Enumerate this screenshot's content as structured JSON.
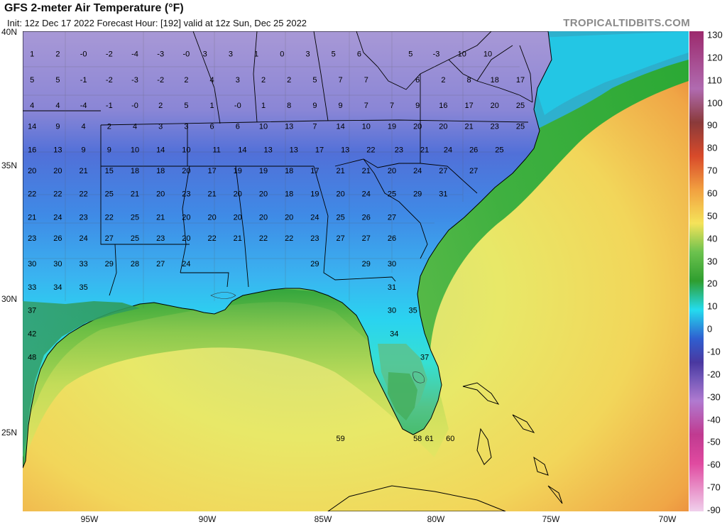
{
  "header": {
    "title": "GFS 2-meter Air Temperature (°F)",
    "subtitle": "Init: 12z Dec 17 2022   Forecast Hour: [192]   valid at 12z Sun, Dec 25 2022",
    "site": "TROPICALTIDBITS.COM"
  },
  "lat_labels": [
    "40N",
    "35N",
    "30N",
    "25N"
  ],
  "lon_labels": [
    "95W",
    "90W",
    "85W",
    "80W",
    "75W",
    "70W"
  ],
  "colorbar": {
    "ticks": [
      "130",
      "120",
      "110",
      "100",
      "90",
      "80",
      "70",
      "60",
      "50",
      "40",
      "30",
      "20",
      "10",
      "0",
      "-10",
      "-20",
      "-30",
      "-40",
      "-50",
      "-60",
      "-70",
      "-90"
    ],
    "colors": {
      "hot": "#9c2a6d",
      "warm": "#e8572a",
      "mild": "#f5e35a",
      "green": "#2f9e2f",
      "cyan": "#24dcef",
      "blue": "#2f5fd0",
      "cold": "#6e55b6",
      "frigid": "#d8c4ec"
    }
  },
  "values": [
    {
      "t": "1",
      "lon": -97.6,
      "lat": 39.0
    },
    {
      "t": "2",
      "lon": -96.5,
      "lat": 39.0
    },
    {
      "t": "-0",
      "lon": -95.4,
      "lat": 39.0
    },
    {
      "t": "-2",
      "lon": -94.3,
      "lat": 39.0
    },
    {
      "t": "-4",
      "lon": -93.2,
      "lat": 39.0
    },
    {
      "t": "-3",
      "lon": -92.1,
      "lat": 39.0
    },
    {
      "t": "-0",
      "lon": -91.0,
      "lat": 39.0
    },
    {
      "t": "3",
      "lon": -90.2,
      "lat": 39.0
    },
    {
      "t": "3",
      "lon": -89.1,
      "lat": 39.0
    },
    {
      "t": "1",
      "lon": -88.0,
      "lat": 39.0
    },
    {
      "t": "0",
      "lon": -86.9,
      "lat": 39.0
    },
    {
      "t": "3",
      "lon": -85.8,
      "lat": 39.0
    },
    {
      "t": "5",
      "lon": -84.7,
      "lat": 39.0
    },
    {
      "t": "6",
      "lon": -83.6,
      "lat": 39.0
    },
    {
      "t": "5",
      "lon": -81.4,
      "lat": 39.0
    },
    {
      "t": "-3",
      "lon": -80.3,
      "lat": 39.0
    },
    {
      "t": "10",
      "lon": -79.2,
      "lat": 39.0
    },
    {
      "t": "10",
      "lon": -78.1,
      "lat": 39.0
    },
    {
      "t": "5",
      "lon": -97.6,
      "lat": 37.9
    },
    {
      "t": "5",
      "lon": -96.5,
      "lat": 37.9
    },
    {
      "t": "-1",
      "lon": -95.4,
      "lat": 37.9
    },
    {
      "t": "-2",
      "lon": -94.3,
      "lat": 37.9
    },
    {
      "t": "-3",
      "lon": -93.2,
      "lat": 37.9
    },
    {
      "t": "-2",
      "lon": -92.1,
      "lat": 37.9
    },
    {
      "t": "2",
      "lon": -91.0,
      "lat": 37.9
    },
    {
      "t": "4",
      "lon": -89.9,
      "lat": 37.9
    },
    {
      "t": "3",
      "lon": -88.8,
      "lat": 37.9
    },
    {
      "t": "2",
      "lon": -87.7,
      "lat": 37.9
    },
    {
      "t": "2",
      "lon": -86.6,
      "lat": 37.9
    },
    {
      "t": "5",
      "lon": -85.5,
      "lat": 37.9
    },
    {
      "t": "7",
      "lon": -84.4,
      "lat": 37.9
    },
    {
      "t": "7",
      "lon": -83.3,
      "lat": 37.9
    },
    {
      "t": "6",
      "lon": -81.1,
      "lat": 37.9
    },
    {
      "t": "2",
      "lon": -80.0,
      "lat": 37.9
    },
    {
      "t": "8",
      "lon": -78.9,
      "lat": 37.9
    },
    {
      "t": "18",
      "lon": -77.8,
      "lat": 37.9
    },
    {
      "t": "17",
      "lon": -76.7,
      "lat": 37.9
    },
    {
      "t": "4",
      "lon": -97.6,
      "lat": 36.8
    },
    {
      "t": "4",
      "lon": -96.5,
      "lat": 36.8
    },
    {
      "t": "-4",
      "lon": -95.4,
      "lat": 36.8
    },
    {
      "t": "-1",
      "lon": -94.3,
      "lat": 36.8
    },
    {
      "t": "-0",
      "lon": -93.2,
      "lat": 36.8
    },
    {
      "t": "2",
      "lon": -92.1,
      "lat": 36.8
    },
    {
      "t": "5",
      "lon": -91.0,
      "lat": 36.8
    },
    {
      "t": "1",
      "lon": -89.9,
      "lat": 36.8
    },
    {
      "t": "-0",
      "lon": -88.8,
      "lat": 36.8
    },
    {
      "t": "1",
      "lon": -87.7,
      "lat": 36.8
    },
    {
      "t": "8",
      "lon": -86.6,
      "lat": 36.8
    },
    {
      "t": "9",
      "lon": -85.5,
      "lat": 36.8
    },
    {
      "t": "9",
      "lon": -84.4,
      "lat": 36.8
    },
    {
      "t": "7",
      "lon": -83.3,
      "lat": 36.8
    },
    {
      "t": "7",
      "lon": -82.2,
      "lat": 36.8
    },
    {
      "t": "9",
      "lon": -81.1,
      "lat": 36.8
    },
    {
      "t": "16",
      "lon": -80.0,
      "lat": 36.8
    },
    {
      "t": "17",
      "lon": -78.9,
      "lat": 36.8
    },
    {
      "t": "20",
      "lon": -77.8,
      "lat": 36.8
    },
    {
      "t": "25",
      "lon": -76.7,
      "lat": 36.8
    },
    {
      "t": "14",
      "lon": -97.6,
      "lat": 35.9
    },
    {
      "t": "9",
      "lon": -96.5,
      "lat": 35.9
    },
    {
      "t": "4",
      "lon": -95.4,
      "lat": 35.9
    },
    {
      "t": "2",
      "lon": -94.3,
      "lat": 35.9
    },
    {
      "t": "4",
      "lon": -93.2,
      "lat": 35.9
    },
    {
      "t": "3",
      "lon": -92.1,
      "lat": 35.9
    },
    {
      "t": "3",
      "lon": -91.0,
      "lat": 35.9
    },
    {
      "t": "6",
      "lon": -89.9,
      "lat": 35.9
    },
    {
      "t": "6",
      "lon": -88.8,
      "lat": 35.9
    },
    {
      "t": "10",
      "lon": -87.7,
      "lat": 35.9
    },
    {
      "t": "13",
      "lon": -86.6,
      "lat": 35.9
    },
    {
      "t": "7",
      "lon": -85.5,
      "lat": 35.9
    },
    {
      "t": "14",
      "lon": -84.4,
      "lat": 35.9
    },
    {
      "t": "10",
      "lon": -83.3,
      "lat": 35.9
    },
    {
      "t": "19",
      "lon": -82.2,
      "lat": 35.9
    },
    {
      "t": "20",
      "lon": -81.1,
      "lat": 35.9
    },
    {
      "t": "20",
      "lon": -80.0,
      "lat": 35.9
    },
    {
      "t": "21",
      "lon": -78.9,
      "lat": 35.9
    },
    {
      "t": "23",
      "lon": -77.8,
      "lat": 35.9
    },
    {
      "t": "25",
      "lon": -76.7,
      "lat": 35.9
    },
    {
      "t": "16",
      "lon": -97.6,
      "lat": 34.9
    },
    {
      "t": "13",
      "lon": -96.5,
      "lat": 34.9
    },
    {
      "t": "9",
      "lon": -95.4,
      "lat": 34.9
    },
    {
      "t": "9",
      "lon": -94.3,
      "lat": 34.9
    },
    {
      "t": "10",
      "lon": -93.2,
      "lat": 34.9
    },
    {
      "t": "14",
      "lon": -92.1,
      "lat": 34.9
    },
    {
      "t": "10",
      "lon": -91.0,
      "lat": 34.9
    },
    {
      "t": "11",
      "lon": -89.7,
      "lat": 34.9
    },
    {
      "t": "14",
      "lon": -88.6,
      "lat": 34.9
    },
    {
      "t": "13",
      "lon": -87.5,
      "lat": 34.9
    },
    {
      "t": "13",
      "lon": -86.4,
      "lat": 34.9
    },
    {
      "t": "17",
      "lon": -85.3,
      "lat": 34.9
    },
    {
      "t": "13",
      "lon": -84.2,
      "lat": 34.9
    },
    {
      "t": "22",
      "lon": -83.1,
      "lat": 34.9
    },
    {
      "t": "23",
      "lon": -81.9,
      "lat": 34.9
    },
    {
      "t": "21",
      "lon": -80.8,
      "lat": 34.9
    },
    {
      "t": "24",
      "lon": -79.8,
      "lat": 34.9
    },
    {
      "t": "26",
      "lon": -78.7,
      "lat": 34.9
    },
    {
      "t": "25",
      "lon": -77.6,
      "lat": 34.9
    },
    {
      "t": "20",
      "lon": -97.6,
      "lat": 34.0
    },
    {
      "t": "20",
      "lon": -96.5,
      "lat": 34.0
    },
    {
      "t": "21",
      "lon": -95.4,
      "lat": 34.0
    },
    {
      "t": "15",
      "lon": -94.3,
      "lat": 34.0
    },
    {
      "t": "18",
      "lon": -93.2,
      "lat": 34.0
    },
    {
      "t": "18",
      "lon": -92.1,
      "lat": 34.0
    },
    {
      "t": "20",
      "lon": -91.0,
      "lat": 34.0
    },
    {
      "t": "17",
      "lon": -89.9,
      "lat": 34.0
    },
    {
      "t": "19",
      "lon": -88.8,
      "lat": 34.0
    },
    {
      "t": "19",
      "lon": -87.7,
      "lat": 34.0
    },
    {
      "t": "18",
      "lon": -86.6,
      "lat": 34.0
    },
    {
      "t": "17",
      "lon": -85.5,
      "lat": 34.0
    },
    {
      "t": "21",
      "lon": -84.4,
      "lat": 34.0
    },
    {
      "t": "21",
      "lon": -83.3,
      "lat": 34.0
    },
    {
      "t": "20",
      "lon": -82.2,
      "lat": 34.0
    },
    {
      "t": "24",
      "lon": -81.1,
      "lat": 34.0
    },
    {
      "t": "27",
      "lon": -80.0,
      "lat": 34.0
    },
    {
      "t": "27",
      "lon": -78.7,
      "lat": 34.0
    },
    {
      "t": "22",
      "lon": -97.6,
      "lat": 33.0
    },
    {
      "t": "22",
      "lon": -96.5,
      "lat": 33.0
    },
    {
      "t": "22",
      "lon": -95.4,
      "lat": 33.0
    },
    {
      "t": "25",
      "lon": -94.3,
      "lat": 33.0
    },
    {
      "t": "21",
      "lon": -93.2,
      "lat": 33.0
    },
    {
      "t": "20",
      "lon": -92.1,
      "lat": 33.0
    },
    {
      "t": "23",
      "lon": -91.0,
      "lat": 33.0
    },
    {
      "t": "21",
      "lon": -89.9,
      "lat": 33.0
    },
    {
      "t": "20",
      "lon": -88.8,
      "lat": 33.0
    },
    {
      "t": "20",
      "lon": -87.7,
      "lat": 33.0
    },
    {
      "t": "18",
      "lon": -86.6,
      "lat": 33.0
    },
    {
      "t": "19",
      "lon": -85.5,
      "lat": 33.0
    },
    {
      "t": "20",
      "lon": -84.4,
      "lat": 33.0
    },
    {
      "t": "24",
      "lon": -83.3,
      "lat": 33.0
    },
    {
      "t": "25",
      "lon": -82.2,
      "lat": 33.0
    },
    {
      "t": "29",
      "lon": -81.1,
      "lat": 33.0
    },
    {
      "t": "31",
      "lon": -80.0,
      "lat": 33.0
    },
    {
      "t": "21",
      "lon": -97.6,
      "lat": 32.0
    },
    {
      "t": "24",
      "lon": -96.5,
      "lat": 32.0
    },
    {
      "t": "23",
      "lon": -95.4,
      "lat": 32.0
    },
    {
      "t": "22",
      "lon": -94.3,
      "lat": 32.0
    },
    {
      "t": "25",
      "lon": -93.2,
      "lat": 32.0
    },
    {
      "t": "21",
      "lon": -92.1,
      "lat": 32.0
    },
    {
      "t": "20",
      "lon": -91.0,
      "lat": 32.0
    },
    {
      "t": "20",
      "lon": -89.9,
      "lat": 32.0
    },
    {
      "t": "20",
      "lon": -88.8,
      "lat": 32.0
    },
    {
      "t": "20",
      "lon": -87.7,
      "lat": 32.0
    },
    {
      "t": "20",
      "lon": -86.6,
      "lat": 32.0
    },
    {
      "t": "24",
      "lon": -85.5,
      "lat": 32.0
    },
    {
      "t": "25",
      "lon": -84.4,
      "lat": 32.0
    },
    {
      "t": "26",
      "lon": -83.3,
      "lat": 32.0
    },
    {
      "t": "27",
      "lon": -82.2,
      "lat": 32.0
    },
    {
      "t": "23",
      "lon": -97.6,
      "lat": 31.1
    },
    {
      "t": "26",
      "lon": -96.5,
      "lat": 31.1
    },
    {
      "t": "24",
      "lon": -95.4,
      "lat": 31.1
    },
    {
      "t": "27",
      "lon": -94.3,
      "lat": 31.1
    },
    {
      "t": "25",
      "lon": -93.2,
      "lat": 31.1
    },
    {
      "t": "23",
      "lon": -92.1,
      "lat": 31.1
    },
    {
      "t": "20",
      "lon": -91.0,
      "lat": 31.1
    },
    {
      "t": "22",
      "lon": -89.9,
      "lat": 31.1
    },
    {
      "t": "21",
      "lon": -88.8,
      "lat": 31.1
    },
    {
      "t": "22",
      "lon": -87.7,
      "lat": 31.1
    },
    {
      "t": "22",
      "lon": -86.6,
      "lat": 31.1
    },
    {
      "t": "23",
      "lon": -85.5,
      "lat": 31.1
    },
    {
      "t": "27",
      "lon": -84.4,
      "lat": 31.1
    },
    {
      "t": "27",
      "lon": -83.3,
      "lat": 31.1
    },
    {
      "t": "26",
      "lon": -82.2,
      "lat": 31.1
    },
    {
      "t": "30",
      "lon": -97.6,
      "lat": 30.0
    },
    {
      "t": "30",
      "lon": -96.5,
      "lat": 30.0
    },
    {
      "t": "33",
      "lon": -95.4,
      "lat": 30.0
    },
    {
      "t": "29",
      "lon": -94.3,
      "lat": 30.0
    },
    {
      "t": "28",
      "lon": -93.2,
      "lat": 30.0
    },
    {
      "t": "27",
      "lon": -92.1,
      "lat": 30.0
    },
    {
      "t": "24",
      "lon": -91.0,
      "lat": 30.0
    },
    {
      "t": "29",
      "lon": -85.5,
      "lat": 30.0
    },
    {
      "t": "29",
      "lon": -83.3,
      "lat": 30.0
    },
    {
      "t": "30",
      "lon": -82.2,
      "lat": 30.0
    },
    {
      "t": "33",
      "lon": -97.6,
      "lat": 29.0
    },
    {
      "t": "34",
      "lon": -96.5,
      "lat": 29.0
    },
    {
      "t": "35",
      "lon": -95.4,
      "lat": 29.0
    },
    {
      "t": "31",
      "lon": -82.2,
      "lat": 29.0
    },
    {
      "t": "37",
      "lon": -97.6,
      "lat": 28.0
    },
    {
      "t": "30",
      "lon": -82.2,
      "lat": 28.0
    },
    {
      "t": "35",
      "lon": -81.3,
      "lat": 28.0
    },
    {
      "t": "42",
      "lon": -97.6,
      "lat": 27.0
    },
    {
      "t": "34",
      "lon": -82.1,
      "lat": 27.0
    },
    {
      "t": "48",
      "lon": -97.6,
      "lat": 26.0
    },
    {
      "t": "37",
      "lon": -80.8,
      "lat": 26.0
    },
    {
      "t": "59",
      "lon": -84.4,
      "lat": 22.5
    },
    {
      "t": "58",
      "lon": -81.1,
      "lat": 22.5
    },
    {
      "t": "61",
      "lon": -80.6,
      "lat": 22.5
    },
    {
      "t": "60",
      "lon": -79.7,
      "lat": 22.5
    }
  ]
}
